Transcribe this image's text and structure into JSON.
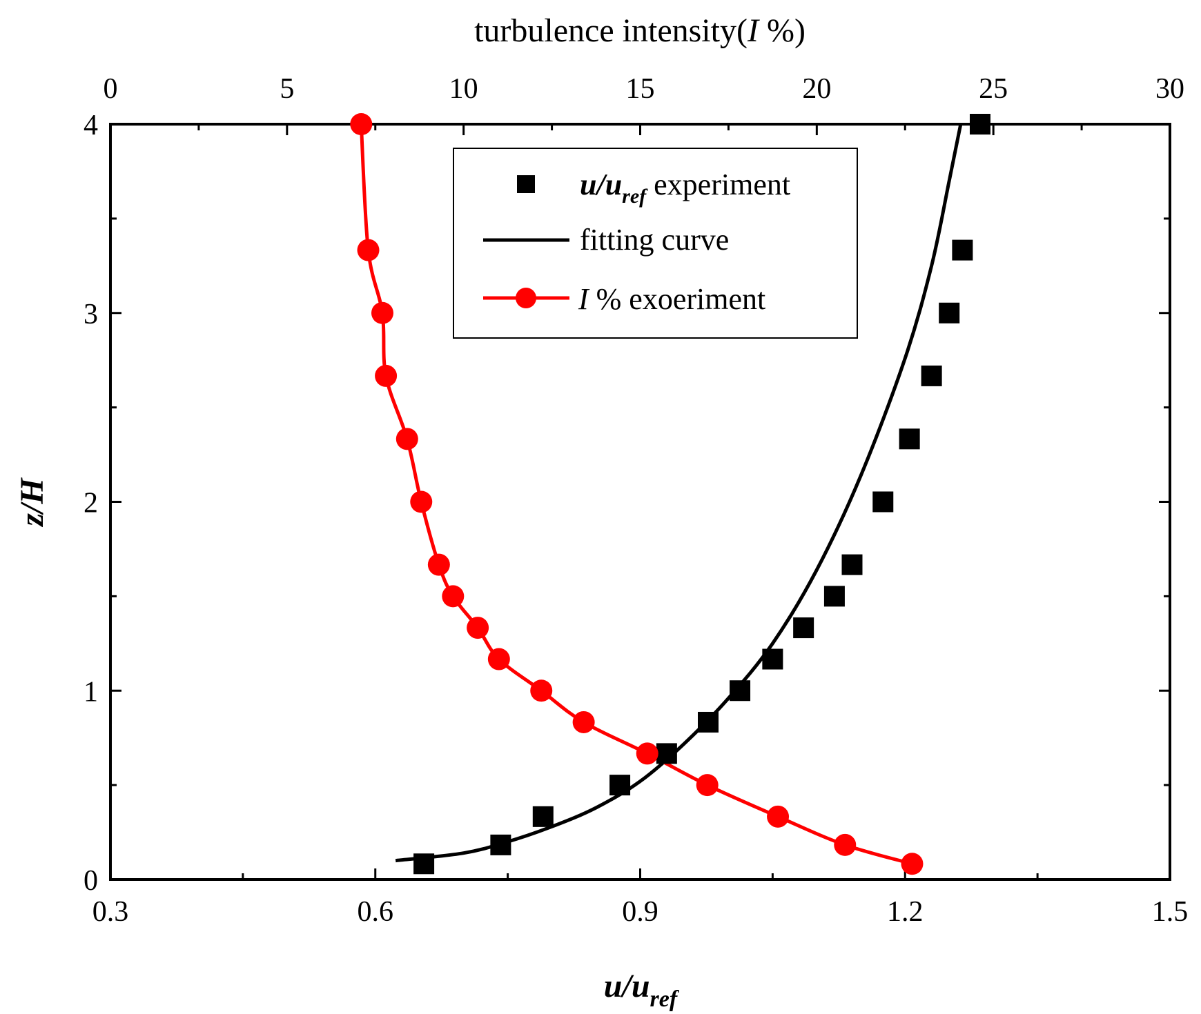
{
  "chart_data": {
    "type": "scatter",
    "xlabel": {
      "main": "u/u",
      "sub": "ref"
    },
    "ylabel": "z/H",
    "top_axis_label": {
      "prefix": "turbulence intensity(",
      "var": "I",
      "suffix": " %)"
    },
    "xlim": [
      0.3,
      1.5
    ],
    "ylim": [
      0,
      4
    ],
    "top_xlim": [
      0,
      30
    ],
    "x_ticks": [
      "0.3",
      "0.6",
      "0.9",
      "1.2",
      "1.5"
    ],
    "y_ticks": [
      "0",
      "1",
      "2",
      "3",
      "4"
    ],
    "top_ticks": [
      "0",
      "5",
      "10",
      "15",
      "20",
      "25",
      "30"
    ],
    "legend": {
      "position": "top-center",
      "experiment": {
        "main": "u/u",
        "sub": "ref",
        "suffix": " experiment"
      },
      "fitting": "fitting curve",
      "intensity": {
        "var": "I",
        "suffix": " % exoeriment"
      }
    },
    "series": [
      {
        "name": "u/uref experiment",
        "axis": "bottom",
        "color": "#000000",
        "marker": "square",
        "points": [
          [
            0.655,
            0.083
          ],
          [
            0.742,
            0.183
          ],
          [
            0.79,
            0.333
          ],
          [
            0.877,
            0.5
          ],
          [
            0.93,
            0.667
          ],
          [
            0.977,
            0.833
          ],
          [
            1.013,
            1.0
          ],
          [
            1.05,
            1.167
          ],
          [
            1.085,
            1.333
          ],
          [
            1.12,
            1.5
          ],
          [
            1.14,
            1.667
          ],
          [
            1.175,
            2.0
          ],
          [
            1.205,
            2.333
          ],
          [
            1.23,
            2.667
          ],
          [
            1.25,
            3.0
          ],
          [
            1.265,
            3.333
          ],
          [
            1.285,
            4.0
          ]
        ]
      },
      {
        "name": "fitting curve",
        "axis": "bottom",
        "color": "#000000",
        "type": "line",
        "points": [
          [
            0.623,
            0.1
          ],
          [
            0.7,
            0.14
          ],
          [
            0.75,
            0.2
          ],
          [
            0.8,
            0.28
          ],
          [
            0.85,
            0.38
          ],
          [
            0.9,
            0.52
          ],
          [
            0.95,
            0.72
          ],
          [
            1.0,
            0.96
          ],
          [
            1.05,
            1.25
          ],
          [
            1.1,
            1.64
          ],
          [
            1.15,
            2.14
          ],
          [
            1.2,
            2.76
          ],
          [
            1.23,
            3.25
          ],
          [
            1.25,
            3.7
          ],
          [
            1.263,
            4.0
          ]
        ]
      },
      {
        "name": "I % exoeriment",
        "axis": "top",
        "color": "#ff0000",
        "marker": "circle",
        "type": "line+marker",
        "points": [
          [
            7.1,
            4.0
          ],
          [
            7.3,
            3.333
          ],
          [
            7.7,
            3.0
          ],
          [
            7.8,
            2.667
          ],
          [
            8.4,
            2.333
          ],
          [
            8.8,
            2.0
          ],
          [
            9.3,
            1.667
          ],
          [
            9.7,
            1.5
          ],
          [
            10.4,
            1.333
          ],
          [
            11.0,
            1.167
          ],
          [
            12.2,
            1.0
          ],
          [
            13.4,
            0.833
          ],
          [
            15.2,
            0.667
          ],
          [
            16.9,
            0.5
          ],
          [
            18.9,
            0.333
          ],
          [
            20.8,
            0.183
          ],
          [
            22.7,
            0.083
          ]
        ]
      }
    ]
  }
}
